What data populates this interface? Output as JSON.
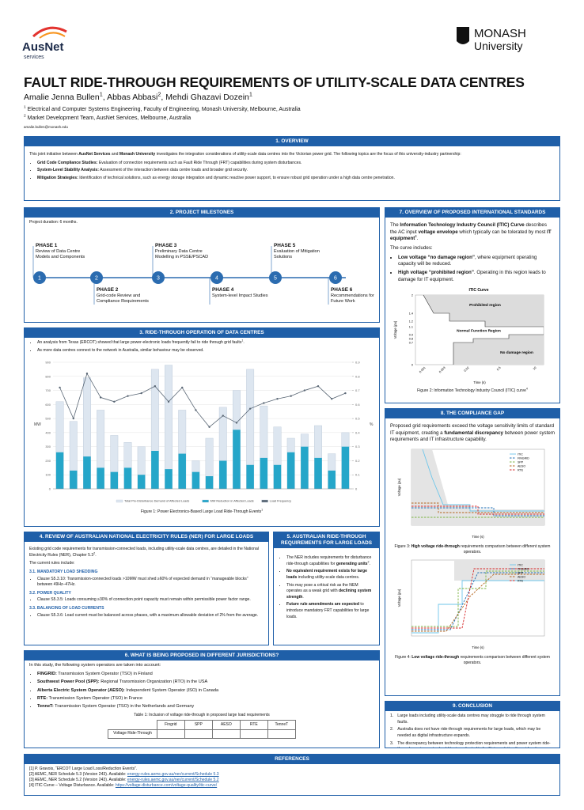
{
  "header": {
    "logo_left": "AusNet",
    "logo_left_sub": "services",
    "logo_right": "MONASH",
    "logo_right_sub": "University",
    "title": "FAULT RIDE-THROUGH REQUIREMENTS OF UTILITY-SCALE DATA CENTRES",
    "authors": [
      [
        {
          "text": "Amalie Jenna Bullen"
        },
        {
          "text": "1",
          "sup": true
        },
        {
          "text": ", "
        }
      ],
      [
        {
          "text": "Abbas Abbasi"
        },
        {
          "text": "2",
          "sup": true
        },
        {
          "text": ", "
        }
      ],
      [
        {
          "text": "Mehdi Ghazavi Dozein"
        },
        {
          "text": "1",
          "sup": true
        }
      ]
    ],
    "affiliations": [
      [
        {
          "text": "1",
          "sup": true
        },
        {
          "text": " Electrical and Computer Systems Engineering, Faculty of Engineering, Monash University, Melbourne, Australia"
        }
      ],
      [
        {
          "text": "2",
          "sup": true
        },
        {
          "text": " Market Development Team, AusNet Services, Melbourne, Australia"
        }
      ]
    ],
    "email": "amalie.bullen@monash.edu"
  },
  "overview": {
    "heading": "1. OVERVIEW",
    "intro": [
      {
        "text": "This joint initiative between "
      },
      {
        "text": "AusNet Services",
        "bold": true
      },
      {
        "text": " and "
      },
      {
        "text": "Monash University",
        "bold": true
      },
      {
        "text": " investigates the integration considerations of utility-scale data centres into the Victorian power grid. The following topics are the focus of this university-industry partnership:"
      }
    ],
    "items": [
      [
        {
          "text": "Grid Code Compliance Studies:",
          "bold": true
        },
        {
          "text": " Evaluation of connection requirements such as Fault Ride Through (FRT) capabilities during system disturbances."
        }
      ],
      [
        {
          "text": "System-Level Stability Analysis:",
          "bold": true
        },
        {
          "text": " Assessment of the interaction between data centre loads and broader grid security."
        }
      ],
      [
        {
          "text": "Mitigation Strategies:",
          "bold": true
        },
        {
          "text": " Identification of technical solutions, such as energy storage integration and dynamic reactive power support, to ensure robust grid operation under a high data centre penetration."
        }
      ]
    ]
  },
  "milestones": {
    "heading": "2. PROJECT MILESTONES",
    "duration": "Project duration: 6 months.",
    "phases": [
      {
        "label": "PHASE 1",
        "text": "Review of Data Centre Models and Components",
        "num": 1
      },
      {
        "label": "PHASE 2",
        "text": "Grid-code Review and Compliance Requirements",
        "num": 2
      },
      {
        "label": "PHASE 3",
        "text": "Preliminary Data Centre Modelling in PSSE/PSCAD",
        "num": 3
      },
      {
        "label": "PHASE 4",
        "text": "System-level Impact Studies",
        "num": 4
      },
      {
        "label": "PHASE 5",
        "text": "Evaluation of Mitigation Solutions",
        "num": 5
      },
      {
        "label": "PHASE 6",
        "text": "Recommendations for Future Work",
        "num": 6
      }
    ]
  },
  "ride_through": {
    "heading": "3. RIDE-THROUGH OPERATION OF DATA CENTRES",
    "bullets": [
      [
        {
          "text": "An analysis from Texas (ERCOT) showed that large power-electronic loads frequently fail to ride through grid faults"
        },
        {
          "text": "1",
          "sup": true
        },
        {
          "text": "."
        }
      ],
      [
        {
          "text": "As more data centres connect to the network in Australia, similar behaviour may be observed."
        }
      ]
    ],
    "chart": {
      "type": "bar",
      "ylabel": "MW",
      "y2label": "%",
      "categories": [
        null,
        null,
        null,
        null,
        null,
        null,
        null,
        null,
        null,
        null,
        null,
        null,
        null,
        null,
        null,
        null,
        null,
        null,
        null,
        null,
        null,
        null
      ],
      "ylim": [
        0,
        900
      ],
      "yticks": [
        0,
        100,
        200,
        300,
        400,
        500,
        600,
        700,
        800,
        900
      ],
      "y2lim": [
        0,
        0.9
      ],
      "y2ticks": [
        0,
        0.1,
        0.2,
        0.3,
        0.4,
        0.5,
        0.6,
        0.7,
        0.8,
        0.9
      ],
      "series": [
        {
          "name": "Total Pre-Disturbance Demand of Affected Loads",
          "color": "#dde6f0",
          "values": [
            620,
            480,
            790,
            560,
            380,
            330,
            300,
            850,
            880,
            560,
            200,
            360,
            580,
            700,
            850,
            590,
            440,
            360,
            390,
            450,
            250,
            400
          ]
        },
        {
          "name": "MW Reduction in Affected Loads",
          "color": "#25a6c9",
          "values": [
            260,
            130,
            230,
            150,
            120,
            150,
            100,
            270,
            140,
            250,
            120,
            90,
            200,
            420,
            170,
            220,
            170,
            260,
            300,
            220,
            130,
            300
          ]
        },
        {
          "name": "Load Frequency",
          "color": "#5a6775",
          "axis": "y2",
          "values": [
            0.72,
            0.5,
            0.82,
            0.65,
            0.62,
            0.66,
            0.68,
            0.73,
            0.62,
            0.72,
            0.56,
            0.44,
            0.52,
            0.47,
            0.57,
            0.61,
            0.64,
            0.66,
            0.7,
            0.73,
            0.64,
            0.68
          ]
        }
      ]
    },
    "caption": [
      {
        "text": "Figure 1: Power Electronics-Based Large Load Ride-Through Events"
      },
      {
        "text": "1",
        "sup": true
      }
    ]
  },
  "ner": {
    "heading": "4. REVIEW OF AUSTRALIAN NATIONAL ELECTRICITY RULES (NER) FOR LARGE LOADS",
    "intro": [
      {
        "text": "Existing grid code requirements for transmission-connected loads, including utility-scale data centres, are detailed in the National Electricity Rules (NER), Chapter 5.3"
      },
      {
        "text": "2",
        "sup": true
      },
      {
        "text": "."
      }
    ],
    "lead": "The current rules include:",
    "subsections": [
      {
        "title": "3.1. MANDATORY LOAD SHEDDING",
        "text": "Clause S5.3.10: Transmission-connected loads >10MW must shed ≥60% of expected demand in “manageable blocks” between 49Hz–47Hz."
      },
      {
        "title": "3.2. POWER QUALITY",
        "text": "Clause S5.3.5: Loads consuming ≥30% of connection point capacity must remain within permissible power factor range."
      },
      {
        "title": "3.3. BALANCING OF LOAD CURRENTS",
        "text": "Clause S5.3.6: Load current must be balanced across phases, with a maximum allowable deviation of 2% from the average."
      }
    ]
  },
  "australian": {
    "heading": "5. AUSTRALIAN RIDE-THROUGH REQUIREMENTS FOR LARGE LOADS",
    "items": [
      [
        {
          "text": "The NER includes requirements for disturbance ride-through capabilities for "
        },
        {
          "text": "generating units",
          "bold": true
        },
        {
          "text": "2",
          "sup": true
        },
        {
          "text": "."
        }
      ],
      [
        {
          "text": "No equivalent requirement exists for large loads",
          "bold": true
        },
        {
          "text": " including utility-scale data centres."
        }
      ],
      [
        {
          "text": "This may pose a critical risk as the NEM operates as a weak grid with "
        },
        {
          "text": "declining system strength",
          "bold": true
        },
        {
          "text": "."
        }
      ],
      [
        {
          "text": "Future rule amendments are expected",
          "bold": true
        },
        {
          "text": " to introduce mandatory FRT capabilities for large loads."
        }
      ]
    ]
  },
  "jurisdictions": {
    "heading": "6. WHAT IS BEING PROPOSED IN DIFFERENT JURISDICTIONS?",
    "intro": "In this study, the following system operators are taken into account:",
    "items": [
      [
        {
          "text": "FINGRID:",
          "bold": true
        },
        {
          "text": " Transmission System Operator (TSO) in Finland"
        }
      ],
      [
        {
          "text": "Southwest Power Pool (SPP):",
          "bold": true
        },
        {
          "text": " Regional Transmission Organization (RTO) in the USA"
        }
      ],
      [
        {
          "text": "Alberta Electric System Operator (AESO):",
          "bold": true
        },
        {
          "text": " Independent System Operator (ISO) in Canada"
        }
      ],
      [
        {
          "text": "RTE:",
          "bold": true
        },
        {
          "text": " Transmission System Operator (TSO) in France"
        }
      ],
      [
        {
          "text": "TenneT:",
          "bold": true
        },
        {
          "text": " Transmission System Operator (TSO) in the Netherlands and Germany"
        }
      ]
    ],
    "table": {
      "caption": "Table 1: Inclusion of voltage ride-through in proposed large load requirements",
      "columns": [
        "Fingrid",
        "SPP",
        "AESO",
        "RTE",
        "TenneT"
      ],
      "row_label": "Voltage Ride-Through"
    }
  },
  "itic": {
    "heading": "7. OVERVIEW OF PROPOSED INTERNATIONAL STANDARDS",
    "para": [
      {
        "text": "The "
      },
      {
        "text": "Information Technology Industry Council (ITIC) Curve",
        "bold": true
      },
      {
        "text": " describes the AC input "
      },
      {
        "text": "voltage envelope",
        "bold": true
      },
      {
        "text": " which typically can be tolerated by most "
      },
      {
        "text": "IT equipment",
        "bold": true
      },
      {
        "text": "4",
        "sup": true
      },
      {
        "text": "."
      }
    ],
    "lead": "The curve includes:",
    "items": [
      [
        {
          "text": "Low voltage “no damage region”",
          "bold": true
        },
        {
          "text": ", where equipment operating capacity will be reduced."
        }
      ],
      [
        {
          "text": "High voltage “prohibited region”",
          "bold": true
        },
        {
          "text": ". Operating in this region leads to damage for IT equipment."
        }
      ]
    ],
    "figure": {
      "title": "ITIC Curve",
      "regions": [
        "Prohibited region",
        "Normal Function Region",
        "No damage region"
      ],
      "yticks": [
        "2",
        "1.4",
        "1.2",
        "1.1",
        "0.9",
        "0.8",
        "0.7",
        "0"
      ],
      "xticks": [
        "0.001",
        "0.003",
        "0.02",
        "0.5",
        "10"
      ],
      "xlabel": "Time (s)",
      "ylabel": "Voltage (pu)"
    },
    "caption": [
      {
        "text": "Figure 2: Information Technology Industry Council (ITIC) curve"
      },
      {
        "text": "4",
        "sup": true
      }
    ]
  },
  "compliance": {
    "heading": "8. THE COMPLIANCE GAP",
    "para": [
      {
        "text": "Proposed grid requirements exceed the voltage sensitivity limits of standard IT equipment, creating a "
      },
      {
        "text": "fundamental discrepancy",
        "bold": true
      },
      {
        "text": " between power system requirements and IT infrastructure capability."
      }
    ],
    "legend": [
      {
        "name": "ITIC",
        "color": "#6ec6ea"
      },
      {
        "name": "FINGRID",
        "color": "#1f6fb5"
      },
      {
        "name": "SPP",
        "color": "#7cb342"
      },
      {
        "name": "AESO",
        "color": "#b5651d"
      },
      {
        "name": "RTE",
        "color": "#d62728"
      }
    ],
    "xlabel": "Time (s)",
    "ylabel": "Voltage (pu)",
    "caption_high": [
      {
        "text": "Figure 3: "
      },
      {
        "text": "High voltage ride-through",
        "bold": true
      },
      {
        "text": " requirements comparison between different system operators."
      }
    ],
    "caption_low": [
      {
        "text": "Figure 4: "
      },
      {
        "text": "Low voltage ride-through",
        "bold": true
      },
      {
        "text": " requirements comparison between different system operators."
      }
    ]
  },
  "conclusion": {
    "heading": "9. CONCLUSION",
    "items": [
      {
        "num": "1.",
        "text": "Large loads including utility-scale data centres may struggle to ride through system faults."
      },
      {
        "num": "2.",
        "text": "Australia does not have ride-through requirements for large loads, which may be needed as digital infrastructure expands."
      },
      {
        "num": "3.",
        "text": "The discrepancy between technology protection requirements and power system ride-through requirements should be investigated to facilitate updating the grid code requirements."
      }
    ]
  },
  "references": {
    "heading": "REFERENCES",
    "items": [
      {
        "text": "[1] P. Gravois, “ERCOT Large Load Loss/Reduction Events”."
      },
      {
        "text": "[2] AEMC, NER Schedule 5.3 (Version 243). Available: ",
        "link": "energy-rules.aemc.gov.au/ner/current/Schedule 5.3"
      },
      {
        "text": "[3] AEMC, NER Schedule 5.2 (Version 243). Available: ",
        "link": "energy-rules.aemc.gov.au/ner/current/Schedule 5.2"
      },
      {
        "text": "[4] ITIC Curve – Voltage Disturbance. Available: ",
        "link": "https://voltage-disturbance.com/voltage-quality/itic-curve/"
      }
    ]
  }
}
